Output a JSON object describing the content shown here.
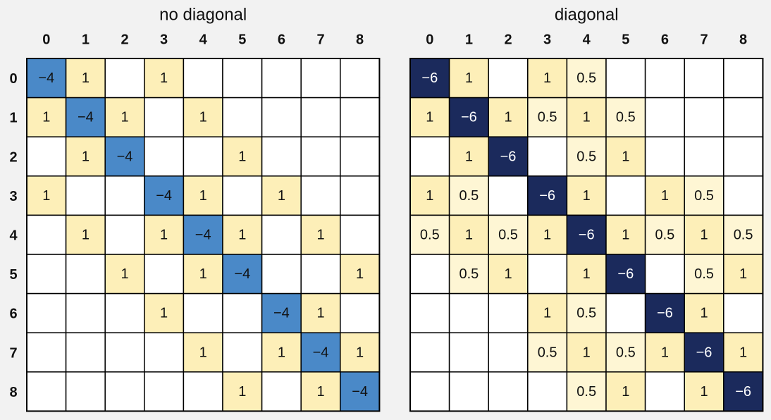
{
  "chart_data": [
    {
      "type": "heatmap",
      "title": "no diagonal",
      "x_categories": [
        "0",
        "1",
        "2",
        "3",
        "4",
        "5",
        "6",
        "7",
        "8"
      ],
      "y_categories": [
        "0",
        "1",
        "2",
        "3",
        "4",
        "5",
        "6",
        "7",
        "8"
      ],
      "values": [
        [
          -4,
          1,
          null,
          1,
          null,
          null,
          null,
          null,
          null
        ],
        [
          1,
          -4,
          1,
          null,
          1,
          null,
          null,
          null,
          null
        ],
        [
          null,
          1,
          -4,
          null,
          null,
          1,
          null,
          null,
          null
        ],
        [
          1,
          null,
          null,
          -4,
          1,
          null,
          1,
          null,
          null
        ],
        [
          null,
          1,
          null,
          1,
          -4,
          1,
          null,
          1,
          null
        ],
        [
          null,
          null,
          1,
          null,
          1,
          -4,
          null,
          null,
          1
        ],
        [
          null,
          null,
          null,
          1,
          null,
          null,
          -4,
          1,
          null
        ],
        [
          null,
          null,
          null,
          null,
          1,
          null,
          1,
          -4,
          1
        ],
        [
          null,
          null,
          null,
          null,
          null,
          1,
          null,
          1,
          -4
        ]
      ],
      "value_labels": [
        [
          "−4",
          "1",
          null,
          "1",
          null,
          null,
          null,
          null,
          null
        ],
        [
          "1",
          "−4",
          "1",
          null,
          "1",
          null,
          null,
          null,
          null
        ],
        [
          null,
          "1",
          "−4",
          null,
          null,
          "1",
          null,
          null,
          null
        ],
        [
          "1",
          null,
          null,
          "−4",
          "1",
          null,
          "1",
          null,
          null
        ],
        [
          null,
          "1",
          null,
          "1",
          "−4",
          "1",
          null,
          "1",
          null
        ],
        [
          null,
          null,
          "1",
          null,
          "1",
          "−4",
          null,
          null,
          "1"
        ],
        [
          null,
          null,
          null,
          "1",
          null,
          null,
          "−4",
          "1",
          null
        ],
        [
          null,
          null,
          null,
          null,
          "1",
          null,
          "1",
          "−4",
          "1"
        ],
        [
          null,
          null,
          null,
          null,
          null,
          "1",
          null,
          "1",
          "−4"
        ]
      ],
      "color_scale": [
        {
          "value": -4,
          "color": "#4a89c8",
          "text_color": "#111111"
        },
        {
          "value": 1,
          "color": "#fdefb8",
          "text_color": "#111111"
        }
      ]
    },
    {
      "type": "heatmap",
      "title": "diagonal",
      "x_categories": [
        "0",
        "1",
        "2",
        "3",
        "4",
        "5",
        "6",
        "7",
        "8"
      ],
      "values": [
        [
          -6,
          1,
          null,
          1,
          0.5,
          null,
          null,
          null,
          null
        ],
        [
          1,
          -6,
          1,
          0.5,
          1,
          0.5,
          null,
          null,
          null
        ],
        [
          null,
          1,
          -6,
          null,
          0.5,
          1,
          null,
          null,
          null
        ],
        [
          1,
          0.5,
          null,
          -6,
          1,
          null,
          1,
          0.5,
          null
        ],
        [
          0.5,
          1,
          0.5,
          1,
          -6,
          1,
          0.5,
          1,
          0.5
        ],
        [
          null,
          0.5,
          1,
          null,
          1,
          -6,
          null,
          0.5,
          1
        ],
        [
          null,
          null,
          null,
          1,
          0.5,
          null,
          -6,
          1,
          null
        ],
        [
          null,
          null,
          null,
          0.5,
          1,
          0.5,
          1,
          -6,
          1
        ],
        [
          null,
          null,
          null,
          null,
          0.5,
          1,
          null,
          1,
          -6
        ]
      ],
      "value_labels": [
        [
          "−6",
          "1",
          null,
          "1",
          "0.5",
          null,
          null,
          null,
          null
        ],
        [
          "1",
          "−6",
          "1",
          "0.5",
          "1",
          "0.5",
          null,
          null,
          null
        ],
        [
          null,
          "1",
          "−6",
          null,
          "0.5",
          "1",
          null,
          null,
          null
        ],
        [
          "1",
          "0.5",
          null,
          "−6",
          "1",
          null,
          "1",
          "0.5",
          null
        ],
        [
          "0.5",
          "1",
          "0.5",
          "1",
          "−6",
          "1",
          "0.5",
          "1",
          "0.5"
        ],
        [
          null,
          "0.5",
          "1",
          null,
          "1",
          "−6",
          null,
          "0.5",
          "1"
        ],
        [
          null,
          null,
          null,
          "1",
          "0.5",
          null,
          "−6",
          "1",
          null
        ],
        [
          null,
          null,
          null,
          "0.5",
          "1",
          "0.5",
          "1",
          "−6",
          "1"
        ],
        [
          null,
          null,
          null,
          null,
          "0.5",
          "1",
          null,
          "1",
          "−6"
        ]
      ],
      "color_scale": [
        {
          "value": -6,
          "color": "#1b2a5c",
          "text_color": "#ffffff"
        },
        {
          "value": 1,
          "color": "#fdefb8",
          "text_color": "#111111"
        },
        {
          "value": 0.5,
          "color": "#fef6d4",
          "text_color": "#111111"
        }
      ]
    }
  ]
}
